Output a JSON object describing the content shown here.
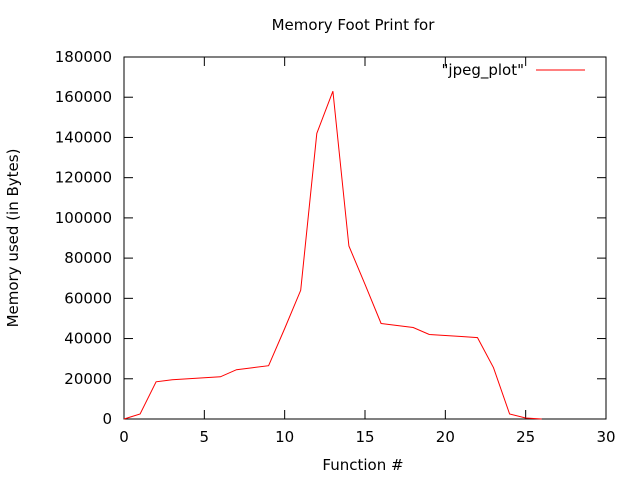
{
  "chart_data": {
    "type": "line",
    "title": "Memory Foot Print for",
    "xlabel": "Function #",
    "ylabel": "Memory used (in Bytes)",
    "xlim": [
      0,
      30
    ],
    "ylim": [
      0,
      180000
    ],
    "xticks": [
      0,
      5,
      10,
      15,
      20,
      25,
      30
    ],
    "yticks": [
      0,
      20000,
      40000,
      60000,
      80000,
      100000,
      120000,
      140000,
      160000,
      180000
    ],
    "grid": false,
    "legend_position": "top-right",
    "series": [
      {
        "name": "\"jpeg_plot\"",
        "color": "#ff0000",
        "x": [
          0,
          1,
          2,
          3,
          4,
          5,
          6,
          7,
          8,
          9,
          10,
          11,
          12,
          13,
          14,
          15,
          16,
          17,
          18,
          19,
          20,
          21,
          22,
          23,
          24,
          25,
          26
        ],
        "y": [
          0,
          2500,
          18500,
          19500,
          20000,
          20500,
          21000,
          24500,
          25500,
          26500,
          45000,
          64000,
          142000,
          163000,
          86000,
          67000,
          47500,
          46500,
          45500,
          42000,
          41500,
          41000,
          40500,
          25500,
          2500,
          500,
          0
        ]
      }
    ]
  }
}
